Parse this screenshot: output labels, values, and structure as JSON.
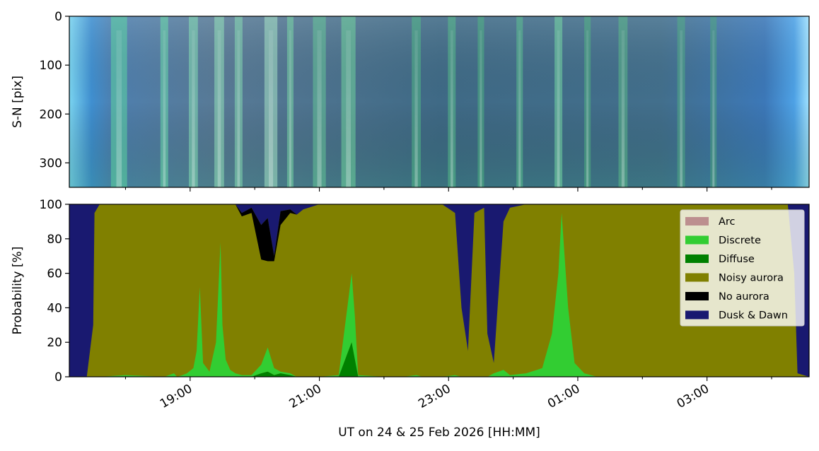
{
  "chart_data": [
    {
      "type": "heatmap",
      "description_kind": "keogram",
      "ylabel": "S-N [pix]",
      "y_ticks": [
        0,
        100,
        200,
        300
      ],
      "ylim": [
        0,
        350
      ],
      "y_inverted": true,
      "xlim_hours": [
        17.13,
        28.58
      ],
      "x_ticks_hours": [
        18.0,
        19.0,
        20.0,
        21.0,
        22.0,
        23.0,
        24.0,
        25.0,
        26.0,
        27.0,
        28.0
      ],
      "bright_bands_hours": [
        {
          "t": 17.9,
          "w": 0.25,
          "c": "#5fe8a0"
        },
        {
          "t": 18.6,
          "w": 0.12,
          "c": "#6ff0a8"
        },
        {
          "t": 19.05,
          "w": 0.14,
          "c": "#8ff5b8"
        },
        {
          "t": 19.45,
          "w": 0.15,
          "c": "#a0f8c0"
        },
        {
          "t": 19.75,
          "w": 0.12,
          "c": "#90f0b8"
        },
        {
          "t": 20.25,
          "w": 0.2,
          "c": "#b8fbd0"
        },
        {
          "t": 20.55,
          "w": 0.1,
          "c": "#80eaa8"
        },
        {
          "t": 21.0,
          "w": 0.2,
          "c": "#6ad898"
        },
        {
          "t": 21.45,
          "w": 0.22,
          "c": "#78e8a0"
        },
        {
          "t": 22.5,
          "w": 0.14,
          "c": "#55c888"
        },
        {
          "t": 23.05,
          "w": 0.12,
          "c": "#5ccc8a"
        },
        {
          "t": 23.5,
          "w": 0.1,
          "c": "#50c080"
        },
        {
          "t": 24.1,
          "w": 0.1,
          "c": "#60d090"
        },
        {
          "t": 24.7,
          "w": 0.12,
          "c": "#80f0a8"
        },
        {
          "t": 25.15,
          "w": 0.1,
          "c": "#55c080"
        },
        {
          "t": 25.7,
          "w": 0.14,
          "c": "#60c888"
        },
        {
          "t": 26.6,
          "w": 0.12,
          "c": "#55b880"
        },
        {
          "t": 27.1,
          "w": 0.1,
          "c": "#50b078"
        }
      ]
    },
    {
      "type": "area",
      "stacked": true,
      "ylabel": "Probability [%]",
      "xlabel": "UT on 24 & 25 Feb 2026 [HH:MM]",
      "ylim": [
        0,
        100
      ],
      "y_ticks": [
        0,
        20,
        40,
        60,
        80,
        100
      ],
      "x_tick_labels": [
        "19:00",
        "21:00",
        "23:00",
        "01:00",
        "03:00"
      ],
      "x_tick_hours": [
        19.0,
        21.0,
        23.0,
        25.0,
        27.0
      ],
      "legend_position": "upper right",
      "series": [
        {
          "name": "Arc",
          "color": "#bc8f8f"
        },
        {
          "name": "Discrete",
          "color": "#32cd32"
        },
        {
          "name": "Diffuse",
          "color": "#008000"
        },
        {
          "name": "Noisy aurora",
          "color": "#808000"
        },
        {
          "name": "No aurora",
          "color": "#000000"
        },
        {
          "name": "Dusk & Dawn",
          "color": "#191970"
        }
      ],
      "x_hours": [
        17.13,
        17.4,
        17.5,
        17.52,
        17.6,
        18.0,
        18.6,
        18.75,
        18.8,
        18.88,
        18.95,
        19.05,
        19.1,
        19.15,
        19.2,
        19.3,
        19.4,
        19.47,
        19.5,
        19.55,
        19.62,
        19.7,
        19.8,
        19.95,
        20.1,
        20.2,
        20.3,
        20.4,
        20.55,
        20.65,
        20.75,
        21.0,
        21.3,
        21.45,
        21.5,
        21.55,
        21.6,
        22.0,
        22.3,
        22.5,
        22.6,
        22.7,
        22.9,
        23.1,
        23.2,
        23.3,
        23.4,
        23.55,
        23.6,
        23.7,
        23.85,
        23.95,
        24.2,
        24.45,
        24.6,
        24.7,
        24.75,
        24.85,
        24.95,
        25.1,
        25.3,
        25.5,
        26.0,
        26.5,
        27.0,
        27.5,
        28.0,
        28.25,
        28.35,
        28.4,
        28.58
      ],
      "values": {
        "Discrete": [
          0,
          0,
          0,
          0,
          0,
          1,
          0,
          2,
          0,
          1,
          2,
          5,
          15,
          52,
          8,
          3,
          20,
          78,
          30,
          10,
          4,
          2,
          1,
          1,
          5,
          14,
          4,
          1,
          1,
          0,
          0,
          0,
          1,
          30,
          40,
          25,
          1,
          0,
          0,
          1,
          0,
          0,
          0,
          1,
          0,
          0,
          0,
          0,
          0,
          2,
          4,
          1,
          2,
          5,
          25,
          60,
          95,
          40,
          8,
          2,
          0,
          0,
          0,
          0,
          0,
          0,
          0,
          0,
          0,
          0,
          0
        ],
        "Diffuse": [
          0,
          0,
          0,
          0,
          0,
          0,
          0,
          0,
          0,
          0,
          0,
          0,
          0,
          0,
          0,
          0,
          0,
          0,
          0,
          0,
          0,
          0,
          0,
          0,
          2,
          3,
          1,
          2,
          1,
          0,
          0,
          0,
          0,
          15,
          20,
          10,
          0,
          0,
          0,
          0,
          0,
          0,
          0,
          0,
          0,
          0,
          0,
          0,
          0,
          0,
          0,
          0,
          0,
          0,
          0,
          0,
          0,
          0,
          0,
          0,
          0,
          0,
          0,
          0,
          0,
          0,
          0,
          0,
          0,
          0,
          0
        ],
        "No aurora": [
          0,
          0,
          0,
          0,
          0,
          0,
          0,
          0,
          0,
          0,
          0,
          0,
          0,
          0,
          0,
          0,
          0,
          0,
          0,
          0,
          0,
          0,
          2,
          3,
          20,
          25,
          3,
          8,
          2,
          0,
          0,
          0,
          0,
          0,
          0,
          0,
          0,
          0,
          0,
          0,
          0,
          0,
          0,
          0,
          0,
          0,
          0,
          0,
          0,
          0,
          0,
          0,
          0,
          0,
          0,
          0,
          0,
          0,
          0,
          0,
          0,
          0,
          0,
          0,
          0,
          0,
          0,
          0,
          0,
          0,
          0
        ],
        "Dusk & Dawn": [
          100,
          100,
          70,
          5,
          0,
          0,
          0,
          0,
          0,
          0,
          0,
          0,
          0,
          0,
          0,
          0,
          0,
          0,
          0,
          0,
          0,
          0,
          5,
          2,
          12,
          8,
          30,
          4,
          3,
          6,
          3,
          0,
          0,
          0,
          0,
          0,
          0,
          0,
          0,
          0,
          0,
          0,
          0,
          5,
          60,
          85,
          5,
          2,
          75,
          92,
          10,
          2,
          0,
          0,
          0,
          0,
          0,
          0,
          0,
          0,
          0,
          0,
          0,
          0,
          0,
          0,
          0,
          0,
          40,
          98,
          100
        ]
      }
    }
  ]
}
